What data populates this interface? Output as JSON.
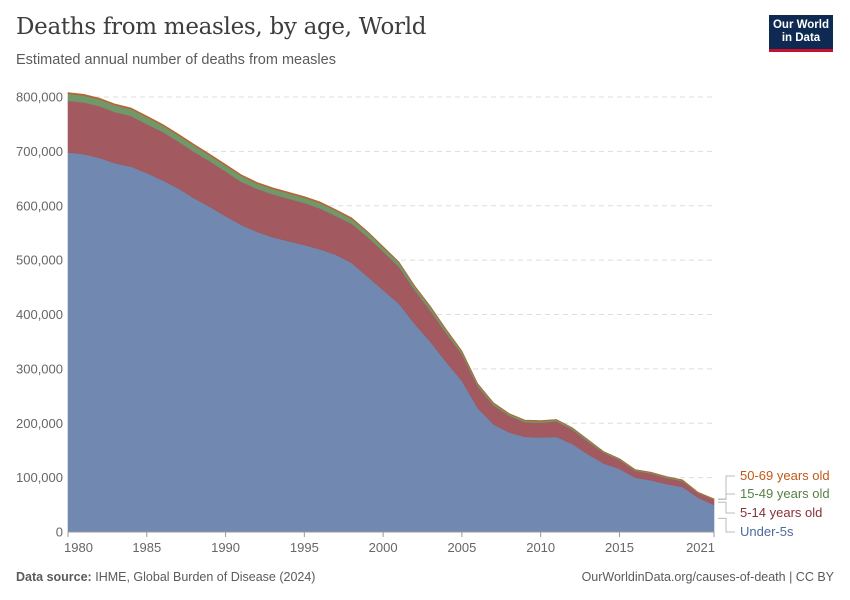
{
  "header": {
    "title": "Deaths from measles, by age, World",
    "subtitle": "Estimated annual number of deaths from measles",
    "logo": "Our World in Data"
  },
  "footer": {
    "source_label": "Data source:",
    "source": "IHME, Global Burden of Disease (2024)",
    "link": "OurWorldinData.org/causes-of-death | CC BY"
  },
  "chart_data": {
    "type": "area",
    "stacked": true,
    "title": "Deaths from measles, by age, World",
    "subtitle": "Estimated annual number of deaths from measles",
    "ylim": [
      0,
      800000
    ],
    "xlim": [
      1980,
      2021
    ],
    "yticks": [
      0,
      100000,
      200000,
      300000,
      400000,
      500000,
      600000,
      700000,
      800000
    ],
    "ytick_labels": [
      "0",
      "100,000",
      "200,000",
      "300,000",
      "400,000",
      "500,000",
      "600,000",
      "700,000",
      "800,000"
    ],
    "xticks": [
      1980,
      1985,
      1990,
      1995,
      2000,
      2005,
      2010,
      2015,
      2021
    ],
    "xtick_labels": [
      "1980",
      "1985",
      "1990",
      "1995",
      "2000",
      "2005",
      "2010",
      "2015",
      "2021"
    ],
    "grid": "horizontal dashed",
    "legend": "right",
    "x": [
      1980,
      1981,
      1982,
      1983,
      1984,
      1985,
      1986,
      1987,
      1988,
      1989,
      1990,
      1991,
      1992,
      1993,
      1994,
      1995,
      1996,
      1997,
      1998,
      1999,
      2000,
      2001,
      2002,
      2003,
      2004,
      2005,
      2006,
      2007,
      2008,
      2009,
      2010,
      2011,
      2012,
      2013,
      2014,
      2015,
      2016,
      2017,
      2018,
      2019,
      2020,
      2021
    ],
    "series": [
      {
        "name": "Under-5s",
        "color": "#6d86ae",
        "label_color": "#4c6a9c",
        "values": [
          698000,
          695000,
          688000,
          678000,
          672000,
          660000,
          647000,
          632000,
          614000,
          598000,
          581000,
          565000,
          552000,
          542000,
          535000,
          528000,
          520000,
          510000,
          495000,
          470000,
          445000,
          420000,
          383000,
          350000,
          313000,
          278000,
          228000,
          198000,
          183000,
          175000,
          174000,
          175000,
          162000,
          143000,
          126000,
          116000,
          100000,
          95000,
          88000,
          83000,
          63000,
          50000
        ]
      },
      {
        "name": "5-14 years old",
        "color": "#a0555b",
        "label_color": "#883039",
        "values": [
          95000,
          95000,
          95000,
          94000,
          93000,
          90000,
          89000,
          86000,
          85000,
          84000,
          82000,
          79000,
          79000,
          79000,
          78000,
          77000,
          75000,
          71000,
          72000,
          73000,
          71000,
          68000,
          62000,
          57000,
          53000,
          49000,
          40000,
          35000,
          31000,
          27000,
          27000,
          28500,
          26500,
          23500,
          19500,
          16500,
          12500,
          12500,
          11500,
          10500,
          8500,
          9500
        ]
      },
      {
        "name": "15-49 years old",
        "color": "#6e9566",
        "label_color": "#578145",
        "values": [
          13000,
          13000,
          13000,
          13000,
          13000,
          13000,
          12000,
          12000,
          12000,
          11000,
          11000,
          11000,
          10000,
          10000,
          10000,
          10000,
          10000,
          10000,
          9000,
          9000,
          8000,
          8000,
          7000,
          7000,
          6000,
          5000,
          4000,
          4000,
          3000,
          3000,
          3000,
          3000,
          3000,
          3000,
          2000,
          2000,
          2000,
          2000,
          2000,
          2000,
          1000,
          1000
        ]
      },
      {
        "name": "50-69 years old",
        "color": "#b8612e",
        "label_color": "#c05917",
        "values": [
          2000,
          2000,
          2000,
          2000,
          2000,
          2000,
          2000,
          2000,
          2000,
          2000,
          2000,
          2000,
          2000,
          2000,
          2000,
          2000,
          2000,
          2000,
          2000,
          1000,
          1000,
          1000,
          1000,
          1000,
          1000,
          1000,
          1000,
          1000,
          1000,
          1000,
          1000,
          500,
          500,
          500,
          500,
          500,
          500,
          500,
          500,
          500,
          500,
          500
        ]
      }
    ]
  }
}
